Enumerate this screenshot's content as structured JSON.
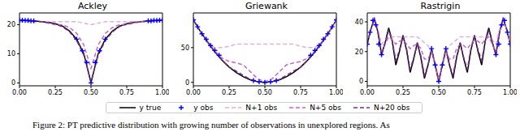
{
  "chart_data": [
    {
      "type": "line",
      "title": "Ackley",
      "x": [
        0,
        0.05,
        0.1,
        0.15,
        0.2,
        0.25,
        0.3,
        0.35,
        0.4,
        0.45,
        0.5,
        0.55,
        0.6,
        0.65,
        0.7,
        0.75,
        0.8,
        0.85,
        0.9,
        0.95,
        1
      ],
      "xlim": [
        0,
        1
      ],
      "xticks": [
        {
          "value": 0,
          "label": "0.00"
        },
        {
          "value": 0.25,
          "label": "0.25"
        },
        {
          "value": 0.5,
          "label": "0.50"
        },
        {
          "value": 0.75,
          "label": "0.75"
        },
        {
          "value": 1,
          "label": "1.00"
        }
      ],
      "ylim": [
        -1,
        24
      ],
      "yticks": [
        0,
        10,
        20
      ],
      "series": [
        {
          "name": "y true",
          "color": "#000000",
          "line_style": "solid",
          "values": [
            21.5,
            21.4,
            21.3,
            21,
            20.8,
            20.3,
            19.5,
            17.8,
            15,
            10,
            0,
            10,
            15,
            17.8,
            19.5,
            20.3,
            20.8,
            21,
            21.3,
            21.4,
            21.5
          ]
        },
        {
          "name": "y obs",
          "type": "scatter",
          "color": "#0000ff",
          "marker": "+",
          "x": [
            0,
            0.02,
            0.04,
            0.06,
            0.08,
            0.1,
            0.4,
            0.44,
            0.47,
            0.5,
            0.53,
            0.56,
            0.6,
            0.9,
            0.92,
            0.94,
            0.96,
            0.98,
            1
          ],
          "values": [
            21.5,
            21.5,
            21.4,
            21.4,
            21.3,
            21.3,
            15,
            11,
            7,
            0,
            7,
            11,
            15,
            21.3,
            21.3,
            21.4,
            21.4,
            21.5,
            21.5
          ]
        },
        {
          "name": "N+1 obs",
          "color": "#d9b3d9",
          "line_style": "dashed",
          "values": [
            21,
            21,
            21,
            21,
            21,
            21,
            21,
            21,
            21,
            20.5,
            20,
            20.5,
            21,
            21,
            21,
            21,
            21,
            21,
            21,
            21,
            21
          ]
        },
        {
          "name": "N+5 obs",
          "color": "#c466c4",
          "line_style": "dashed",
          "values": [
            21.5,
            21.3,
            21,
            21,
            20.5,
            20,
            20,
            19,
            17,
            13,
            5,
            13,
            17,
            19,
            20,
            20,
            20.5,
            21,
            21,
            21.3,
            21.5
          ]
        },
        {
          "name": "N+20 obs",
          "color": "#7a2a90",
          "line_style": "dashed",
          "values": [
            21.5,
            21.4,
            21.2,
            21,
            20.7,
            20.2,
            19.3,
            17.5,
            14.5,
            9.5,
            0.5,
            9.5,
            14.5,
            17.5,
            19.3,
            20.2,
            20.7,
            21,
            21.2,
            21.4,
            21.5
          ]
        }
      ]
    },
    {
      "type": "line",
      "title": "Griewank",
      "legend": "bottom",
      "x": [
        0,
        0.05,
        0.1,
        0.15,
        0.2,
        0.25,
        0.3,
        0.35,
        0.4,
        0.45,
        0.5,
        0.55,
        0.6,
        0.65,
        0.7,
        0.75,
        0.8,
        0.85,
        0.9,
        0.95,
        1
      ],
      "xlim": [
        0,
        1
      ],
      "xticks": [
        {
          "value": 0,
          "label": "0.00"
        },
        {
          "value": 0.25,
          "label": "0.25"
        },
        {
          "value": 0.5,
          "label": "0.50"
        },
        {
          "value": 0.75,
          "label": "0.75"
        },
        {
          "value": 1,
          "label": "1.00"
        }
      ],
      "ylim": [
        -5,
        100
      ],
      "yticks": [
        0,
        50
      ],
      "series": [
        {
          "name": "y true",
          "color": "#000000",
          "line_style": "solid",
          "values": [
            90,
            73,
            58,
            44,
            32,
            22,
            14,
            8,
            3.5,
            1,
            0,
            1,
            3.5,
            8,
            14,
            22,
            32,
            44,
            58,
            73,
            90
          ]
        },
        {
          "name": "y obs",
          "type": "scatter",
          "color": "#0000ff",
          "marker": "+",
          "x": [
            0,
            0.03,
            0.06,
            0.09,
            0.12,
            0.15,
            0.18,
            0.42,
            0.46,
            0.5,
            0.54,
            0.58,
            0.82,
            0.85,
            0.88,
            0.91,
            0.94,
            0.97,
            1
          ],
          "values": [
            90,
            80,
            70,
            62,
            53,
            46,
            39,
            2.5,
            0.7,
            0,
            0.7,
            2.5,
            39,
            46,
            53,
            62,
            70,
            80,
            90
          ]
        },
        {
          "name": "N+1 obs",
          "color": "#d9b3d9",
          "line_style": "dashed",
          "values": [
            90,
            73,
            58,
            50,
            50,
            52,
            55,
            55,
            55,
            55,
            55,
            55,
            55,
            55,
            55,
            52,
            50,
            50,
            58,
            73,
            90
          ]
        },
        {
          "name": "N+5 obs",
          "color": "#c466c4",
          "line_style": "dashed",
          "values": [
            90,
            73,
            58,
            45,
            35,
            30,
            28,
            25,
            15,
            5,
            1,
            5,
            15,
            25,
            28,
            30,
            35,
            45,
            58,
            73,
            90
          ]
        },
        {
          "name": "N+20 obs",
          "color": "#7a2a90",
          "line_style": "dashed",
          "values": [
            90,
            73,
            58,
            44,
            32,
            22,
            16,
            10,
            4,
            1,
            0,
            1,
            4,
            10,
            16,
            22,
            32,
            44,
            58,
            73,
            90
          ]
        }
      ]
    },
    {
      "type": "line",
      "title": "Rastrigin",
      "x": [
        0,
        0.025,
        0.05,
        0.075,
        0.1,
        0.125,
        0.15,
        0.175,
        0.2,
        0.225,
        0.25,
        0.275,
        0.3,
        0.325,
        0.35,
        0.375,
        0.4,
        0.425,
        0.45,
        0.475,
        0.5,
        0.525,
        0.55,
        0.575,
        0.6,
        0.625,
        0.65,
        0.675,
        0.7,
        0.725,
        0.75,
        0.775,
        0.8,
        0.825,
        0.85,
        0.875,
        0.9,
        0.925,
        0.95,
        0.975,
        1
      ],
      "xlim": [
        0,
        1
      ],
      "xticks": [
        {
          "value": 0,
          "label": "0.00"
        },
        {
          "value": 0.25,
          "label": "0.25"
        },
        {
          "value": 0.5,
          "label": "0.50"
        },
        {
          "value": 0.75,
          "label": "0.75"
        },
        {
          "value": 1,
          "label": "1.00"
        }
      ],
      "ylim": [
        -3,
        46
      ],
      "yticks": [
        0,
        20,
        40
      ],
      "series": [
        {
          "name": "y true",
          "color": "#000000",
          "line_style": "solid",
          "values": [
            25,
            35,
            42,
            33,
            18,
            26,
            36,
            27,
            11,
            20,
            31,
            21,
            6,
            15,
            26,
            16,
            2,
            11,
            22,
            11,
            0,
            11,
            22,
            11,
            2,
            16,
            26,
            15,
            6,
            21,
            31,
            20,
            11,
            27,
            36,
            26,
            18,
            33,
            42,
            35,
            25
          ]
        },
        {
          "name": "y obs",
          "type": "scatter",
          "color": "#0000ff",
          "marker": "+",
          "x": [
            0,
            0.02,
            0.04,
            0.06,
            0.08,
            0.1,
            0.45,
            0.475,
            0.5,
            0.525,
            0.55,
            0.9,
            0.92,
            0.94,
            0.96,
            0.98,
            1
          ],
          "values": [
            25,
            33,
            41,
            38,
            25,
            18,
            22,
            11,
            0,
            11,
            22,
            18,
            25,
            38,
            41,
            33,
            25
          ]
        },
        {
          "name": "N+1 obs",
          "color": "#d9b3d9",
          "line_style": "dashed",
          "values": [
            25,
            35,
            42,
            35,
            25,
            28,
            30,
            30,
            30,
            30,
            30,
            30,
            30,
            30,
            30,
            28,
            26,
            24,
            20,
            12,
            2,
            12,
            20,
            24,
            26,
            28,
            30,
            30,
            30,
            30,
            30,
            30,
            30,
            30,
            30,
            28,
            25,
            35,
            42,
            35,
            25
          ]
        },
        {
          "name": "N+5 obs",
          "color": "#c466c4",
          "line_style": "dashed",
          "values": [
            25,
            35,
            42,
            33,
            20,
            25,
            30,
            28,
            25,
            27,
            28,
            25,
            22,
            24,
            25,
            22,
            15,
            15,
            20,
            11,
            1,
            11,
            20,
            15,
            15,
            22,
            25,
            24,
            22,
            25,
            28,
            27,
            25,
            28,
            30,
            25,
            20,
            33,
            42,
            35,
            25
          ]
        },
        {
          "name": "N+20 obs",
          "color": "#7a2a90",
          "line_style": "dashed",
          "values": [
            25,
            35,
            42,
            33,
            18,
            26,
            34,
            27,
            14,
            21,
            30,
            22,
            8,
            16,
            25,
            17,
            4,
            11,
            21,
            11,
            0,
            11,
            21,
            11,
            4,
            17,
            25,
            16,
            8,
            22,
            30,
            21,
            14,
            27,
            34,
            26,
            18,
            33,
            42,
            35,
            25
          ]
        }
      ]
    }
  ],
  "caption": "Figure 2: PT predictive distribution with growing number of observations in unexplored regions. As"
}
